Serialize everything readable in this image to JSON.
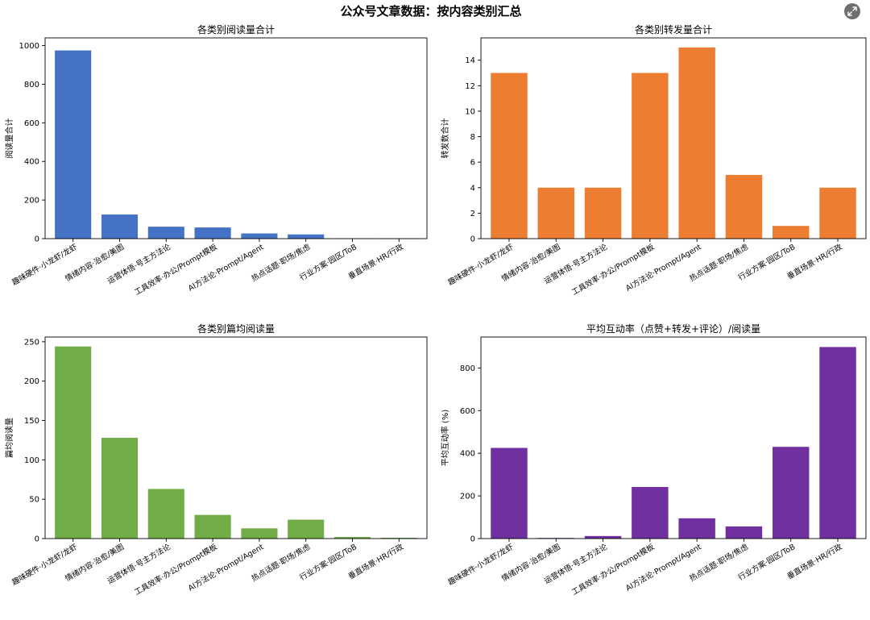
{
  "figure": {
    "title": "公众号文章数据：按内容类别汇总",
    "expand_icon": "expand-icon"
  },
  "chart_data": [
    {
      "type": "bar",
      "title": "各类别阅读量合计",
      "xlabel": "",
      "ylabel": "阅读量合计",
      "color": "#4472c4",
      "categories": [
        "趣味硬件·小龙虾/龙虾",
        "情绪内容·治愈/美图",
        "运营体悟·号主方法论",
        "工具效率·办公/Prompt模板",
        "AI方法论·Prompt/Agent",
        "热点话题·职场/焦虑",
        "行业方案·园区/ToB",
        "垂直场景·HR/行政"
      ],
      "values": [
        975,
        125,
        62,
        58,
        27,
        22,
        2,
        1
      ],
      "ylim": [
        0,
        1040
      ],
      "yticks": [
        0,
        200,
        400,
        600,
        800,
        1000
      ],
      "grid": false
    },
    {
      "type": "bar",
      "title": "各类别转发量合计",
      "xlabel": "",
      "ylabel": "转发数合计",
      "color": "#ed7d31",
      "categories": [
        "趣味硬件·小龙虾/龙虾",
        "情绪内容·治愈/美图",
        "运营体悟·号主方法论",
        "工具效率·办公/Prompt模板",
        "AI方法论·Prompt/Agent",
        "热点话题·职场/焦虑",
        "行业方案·园区/ToB",
        "垂直场景·HR/行政"
      ],
      "values": [
        13,
        4,
        4,
        13,
        15,
        5,
        1,
        4
      ],
      "ylim": [
        0,
        15.75
      ],
      "yticks": [
        0,
        2,
        4,
        6,
        8,
        10,
        12,
        14
      ],
      "grid": false
    },
    {
      "type": "bar",
      "title": "各类别篇均阅读量",
      "xlabel": "",
      "ylabel": "篇均阅读量",
      "color": "#70ad47",
      "categories": [
        "趣味硬件·小龙虾/龙虾",
        "情绪内容·治愈/美图",
        "运营体悟·号主方法论",
        "工具效率·办公/Prompt模板",
        "AI方法论·Prompt/Agent",
        "热点话题·职场/焦虑",
        "行业方案·园区/ToB",
        "垂直场景·HR/行政"
      ],
      "values": [
        244,
        128,
        63,
        30,
        13,
        24,
        2,
        1
      ],
      "ylim": [
        0,
        256
      ],
      "yticks": [
        0,
        50,
        100,
        150,
        200,
        250
      ],
      "grid": false
    },
    {
      "type": "bar",
      "title": "平均互动率（点赞+转发+评论）/阅读量",
      "xlabel": "",
      "ylabel": "平均互动率 (%)",
      "color": "#7030a0",
      "categories": [
        "趣味硬件·小龙虾/龙虾",
        "情绪内容·治愈/美图",
        "运营体悟·号主方法论",
        "工具效率·办公/Prompt模板",
        "AI方法论·Prompt/Agent",
        "热点话题·职场/焦虑",
        "行业方案·园区/ToB",
        "垂直场景·HR/行政"
      ],
      "values": [
        425,
        3,
        12,
        242,
        95,
        57,
        430,
        898
      ],
      "ylim": [
        0,
        945
      ],
      "yticks": [
        0,
        200,
        400,
        600,
        800
      ],
      "grid": false
    }
  ]
}
